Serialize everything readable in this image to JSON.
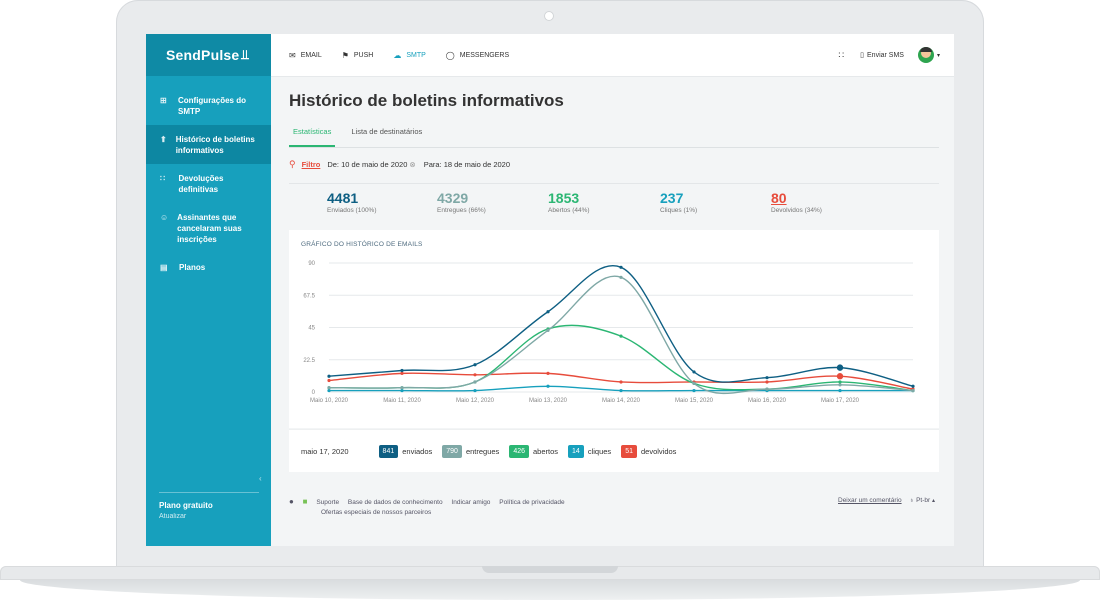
{
  "app": {
    "brand": "SendPulse",
    "pulse": "‑╱╲"
  },
  "sidebar": {
    "items": [
      {
        "label": "Configurações do SMTP",
        "icon": "settings-icon"
      },
      {
        "label": "Histórico de boletins informativos",
        "icon": "history-icon"
      },
      {
        "label": "Devoluções definitivas",
        "icon": "bounce-icon"
      },
      {
        "label": "Assinantes que cancelaram suas inscrições",
        "icon": "unsubscribe-icon"
      },
      {
        "label": "Planos",
        "icon": "plans-icon"
      }
    ],
    "plan": "Plano gratuito",
    "upgrade": "Atualizar"
  },
  "topnav": {
    "items": [
      "EMAIL",
      "PUSH",
      "SMTP",
      "MESSENGERS"
    ],
    "sms": "Enviar SMS"
  },
  "page": {
    "title": "Histórico de boletins informativos",
    "tabs": [
      "Estatísticas",
      "Lista de destinatários"
    ],
    "filter_label": "Filtro",
    "date_from": "De: 10 de maio de 2020",
    "date_to": "Para: 18 de maio de 2020"
  },
  "stats": [
    {
      "value": "4481",
      "label": "Enviados (100%)",
      "color": "#0e5f83"
    },
    {
      "value": "4329",
      "label": "Entregues (66%)",
      "color": "#7fa8a6"
    },
    {
      "value": "1853",
      "label": "Abertos (44%)",
      "color": "#2bb673"
    },
    {
      "value": "237",
      "label": "Cliques (1%)",
      "color": "#17a0bd"
    },
    {
      "value": "80",
      "label": "Devolvidos (34%)",
      "color": "#e74c3c"
    }
  ],
  "chart_data": {
    "type": "line",
    "title": "GRÁFICO DO HISTÓRICO DE EMAILS",
    "categories": [
      "Maio 10, 2020",
      "Maio 11, 2020",
      "Maio 12, 2020",
      "Maio 13, 2020",
      "Maio 14, 2020",
      "Maio 15, 2020",
      "Maio 16, 2020",
      "Maio 17, 2020",
      "Maio 18, 2020"
    ],
    "yticks": [
      "0",
      "22.5",
      "45",
      "67.5",
      "90"
    ],
    "ylim": [
      0,
      90
    ],
    "grid": true,
    "series": [
      {
        "name": "enviados",
        "color": "#0e5f83",
        "values": [
          11,
          15,
          19,
          56,
          87,
          14,
          10,
          17,
          4
        ]
      },
      {
        "name": "entregues",
        "color": "#7fa8a6",
        "values": [
          3,
          3,
          7,
          43,
          80,
          6,
          2,
          5,
          1
        ]
      },
      {
        "name": "abertos",
        "color": "#2bb673",
        "values": [
          3,
          3,
          7,
          44,
          39,
          6,
          2,
          7,
          1
        ]
      },
      {
        "name": "cliques",
        "color": "#17a0bd",
        "values": [
          1,
          1,
          1,
          4,
          1,
          1,
          1,
          1,
          1
        ]
      },
      {
        "name": "devolvidos",
        "color": "#e74c3c",
        "values": [
          8,
          13,
          12,
          13,
          7,
          7,
          7,
          11,
          2
        ]
      }
    ]
  },
  "legend": {
    "date": "maio 17, 2020",
    "items": [
      {
        "value": "841",
        "label": "enviados",
        "color": "#0e5f83"
      },
      {
        "value": "790",
        "label": "entregues",
        "color": "#7fa8a6"
      },
      {
        "value": "426",
        "label": "abertos",
        "color": "#2bb673"
      },
      {
        "value": "14",
        "label": "cliques",
        "color": "#17a0bd"
      },
      {
        "value": "51",
        "label": "devolvidos",
        "color": "#e74c3c"
      }
    ]
  },
  "footer": {
    "links": [
      "Suporte",
      "Base de dados de conhecimento",
      "Indicar amigo",
      "Política de privacidade"
    ],
    "offers": "Ofertas especiais de nossos parceiros",
    "comment": "Deixar um comentário",
    "lang": "Pt-br"
  }
}
